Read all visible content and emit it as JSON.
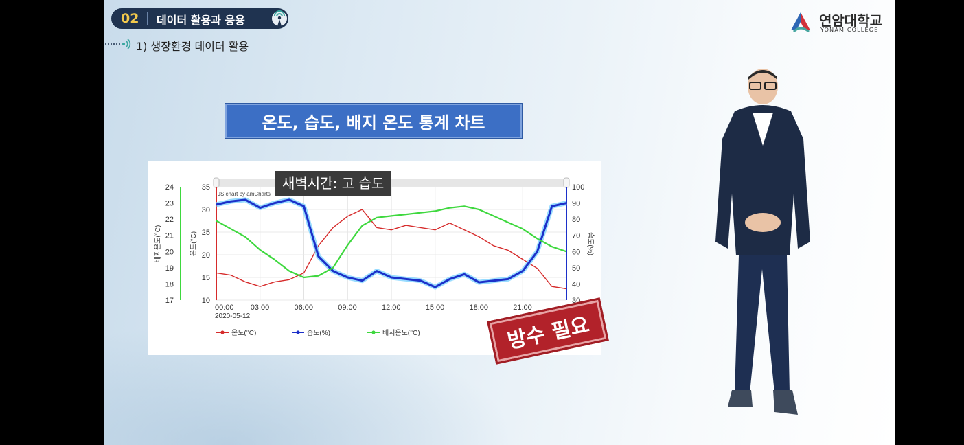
{
  "header": {
    "number": "02",
    "title": "데이터 활용과 응용",
    "subtitle": "1) 생장환경 데이터 활용"
  },
  "logo": {
    "name_ko": "연암대학교",
    "name_en": "YONAM COLLEGE"
  },
  "slide_title": "온도, 습도, 배지 온도 통계 차트",
  "callout": "새벽시간: 고 습도",
  "stamp": "방수 필요",
  "colors": {
    "temperature": "#d62b2b",
    "humidity": "#1c30c9",
    "substrate": "#3ed83e",
    "header_bg": "#1f3350",
    "title_bg": "#3c6fc5",
    "stamp": "#b2222a"
  },
  "chart_data": {
    "type": "line",
    "credit": "JS chart by amCharts",
    "x_ticks": [
      "00:00",
      "03:00",
      "06:00",
      "09:00",
      "12:00",
      "15:00",
      "18:00",
      "21:00"
    ],
    "date_label": "2020-05-12",
    "axes": {
      "substrate": {
        "label": "배지온도(°C)",
        "range": [
          17,
          24
        ],
        "ticks": [
          "17",
          "18",
          "19",
          "20",
          "21",
          "22",
          "23",
          "24"
        ],
        "position": "far-left"
      },
      "temperature": {
        "label": "온도(°C)",
        "range": [
          10,
          35
        ],
        "ticks": [
          "10",
          "15",
          "20",
          "25",
          "30",
          "35"
        ],
        "position": "left"
      },
      "humidity": {
        "label": "습도(%)",
        "range": [
          30,
          100
        ],
        "ticks": [
          "30",
          "40",
          "50",
          "60",
          "70",
          "80",
          "90",
          "100"
        ],
        "position": "right"
      }
    },
    "legend": [
      "온도(°C)",
      "습도(%)",
      "배지온도(°C)"
    ],
    "legend_position": "bottom",
    "grid": true,
    "series": [
      {
        "name": "온도(°C)",
        "axis": "temperature",
        "x_hours": [
          0,
          1,
          2,
          3,
          4,
          5,
          6,
          7,
          8,
          9,
          10,
          11,
          12,
          13,
          14,
          15,
          16,
          17,
          18,
          19,
          20,
          21,
          22,
          23,
          24
        ],
        "values": [
          16,
          15.5,
          14,
          13,
          14,
          14.5,
          16,
          22,
          26,
          28.5,
          30,
          26,
          25.5,
          26.5,
          26,
          25.5,
          27,
          25.5,
          24,
          22,
          21,
          19,
          17,
          13,
          12.5
        ]
      },
      {
        "name": "습도(%)",
        "axis": "humidity",
        "x_hours": [
          0,
          1,
          2,
          3,
          4,
          5,
          6,
          7,
          8,
          9,
          10,
          11,
          12,
          13,
          14,
          15,
          16,
          17,
          18,
          19,
          20,
          21,
          22,
          23,
          24
        ],
        "values": [
          89,
          91,
          92,
          87,
          90,
          92,
          88,
          57,
          48,
          44,
          42,
          48,
          44,
          43,
          42,
          38,
          43,
          46,
          41,
          42,
          43,
          48,
          60,
          88,
          90
        ]
      },
      {
        "name": "배지온도(°C)",
        "axis": "substrate",
        "x_hours": [
          0,
          1,
          2,
          3,
          4,
          5,
          6,
          7,
          8,
          9,
          10,
          11,
          12,
          13,
          14,
          15,
          16,
          17,
          18,
          19,
          20,
          21,
          22,
          23,
          24
        ],
        "values": [
          21.9,
          21.4,
          20.9,
          20.1,
          19.5,
          18.8,
          18.4,
          18.5,
          19.0,
          20.4,
          21.6,
          22.1,
          22.2,
          22.3,
          22.4,
          22.5,
          22.7,
          22.8,
          22.6,
          22.2,
          21.8,
          21.4,
          20.8,
          20.3,
          20.0
        ]
      }
    ]
  }
}
